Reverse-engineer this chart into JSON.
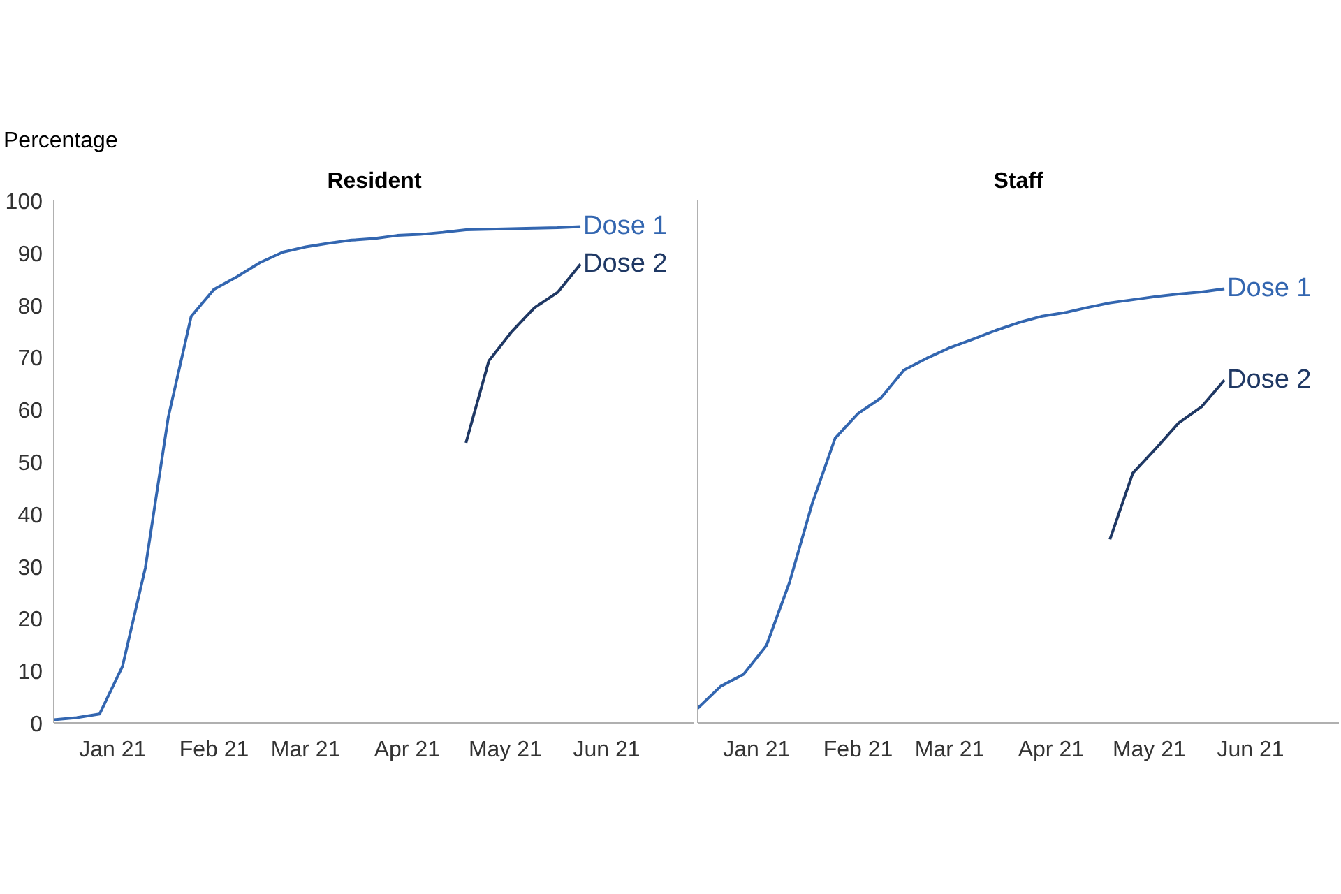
{
  "chart_data": [
    {
      "type": "line",
      "title": "Resident",
      "ylabel": "Percentage",
      "grid": false,
      "x": [
        "2020-12-14",
        "2020-12-21",
        "2020-12-28",
        "2021-01-04",
        "2021-01-11",
        "2021-01-18",
        "2021-01-25",
        "2021-02-01",
        "2021-02-08",
        "2021-02-15",
        "2021-02-22",
        "2021-03-01",
        "2021-03-08",
        "2021-03-15",
        "2021-03-22",
        "2021-03-29",
        "2021-04-05",
        "2021-04-12",
        "2021-04-19",
        "2021-04-26",
        "2021-05-03",
        "2021-05-10",
        "2021-05-17",
        "2021-05-24"
      ],
      "xlim": [
        "2020-12-14",
        "2021-06-28"
      ],
      "xticks": [
        {
          "value": "2021-01-01",
          "label": "Jan 21"
        },
        {
          "value": "2021-02-01",
          "label": "Feb 21"
        },
        {
          "value": "2021-03-01",
          "label": "Mar 21"
        },
        {
          "value": "2021-04-01",
          "label": "Apr 21"
        },
        {
          "value": "2021-05-01",
          "label": "May 21"
        },
        {
          "value": "2021-06-01",
          "label": "Jun 21"
        }
      ],
      "ylim": [
        0,
        100
      ],
      "yticks": [
        0,
        10,
        20,
        30,
        40,
        50,
        60,
        70,
        80,
        90,
        100
      ],
      "series": [
        {
          "name": "Dose 1",
          "color": "#3366b0",
          "values": [
            0.6,
            1.0,
            1.7,
            10.8,
            29.7,
            58.5,
            77.8,
            83,
            85.4,
            88.1,
            90.1,
            91.1,
            91.8,
            92.4,
            92.7,
            93.3,
            93.5,
            93.9,
            94.4,
            94.5,
            94.6,
            94.7,
            94.8,
            95.0
          ]
        },
        {
          "name": "Dose 2",
          "color": "#1f3864",
          "x": [
            "2021-04-19",
            "2021-04-26",
            "2021-05-03",
            "2021-05-10",
            "2021-05-17",
            "2021-05-24"
          ],
          "values": [
            53.6,
            69.3,
            74.9,
            79.5,
            82.4,
            87.8
          ]
        }
      ]
    },
    {
      "type": "line",
      "title": "Staff",
      "grid": false,
      "tick_labels": "x",
      "x": [
        "2020-12-14",
        "2020-12-21",
        "2020-12-28",
        "2021-01-04",
        "2021-01-11",
        "2021-01-18",
        "2021-01-25",
        "2021-02-01",
        "2021-02-08",
        "2021-02-15",
        "2021-02-22",
        "2021-03-01",
        "2021-03-08",
        "2021-03-15",
        "2021-03-22",
        "2021-03-29",
        "2021-04-05",
        "2021-04-12",
        "2021-04-19",
        "2021-04-26",
        "2021-05-03",
        "2021-05-10",
        "2021-05-17",
        "2021-05-24"
      ],
      "xlim": [
        "2020-12-14",
        "2021-06-28"
      ],
      "xticks": [
        {
          "value": "2021-01-01",
          "label": "Jan 21"
        },
        {
          "value": "2021-02-01",
          "label": "Feb 21"
        },
        {
          "value": "2021-03-01",
          "label": "Mar 21"
        },
        {
          "value": "2021-04-01",
          "label": "Apr 21"
        },
        {
          "value": "2021-05-01",
          "label": "May 21"
        },
        {
          "value": "2021-06-01",
          "label": "Jun 21"
        }
      ],
      "ylim": [
        0,
        100
      ],
      "series": [
        {
          "name": "Dose 1",
          "color": "#3366b0",
          "values": [
            2.8,
            7.0,
            9.3,
            14.8,
            26.8,
            42.0,
            54.5,
            59.2,
            62.2,
            67.5,
            69.8,
            71.8,
            73.4,
            75.1,
            76.6,
            77.8,
            78.5,
            79.5,
            80.4,
            81.0,
            81.6,
            82.1,
            82.5,
            83.1
          ]
        },
        {
          "name": "Dose 2",
          "color": "#1f3864",
          "x": [
            "2021-04-19",
            "2021-04-26",
            "2021-05-03",
            "2021-05-10",
            "2021-05-17",
            "2021-05-24"
          ],
          "values": [
            35.1,
            47.8,
            52.5,
            57.4,
            60.5,
            65.6
          ]
        }
      ]
    }
  ]
}
